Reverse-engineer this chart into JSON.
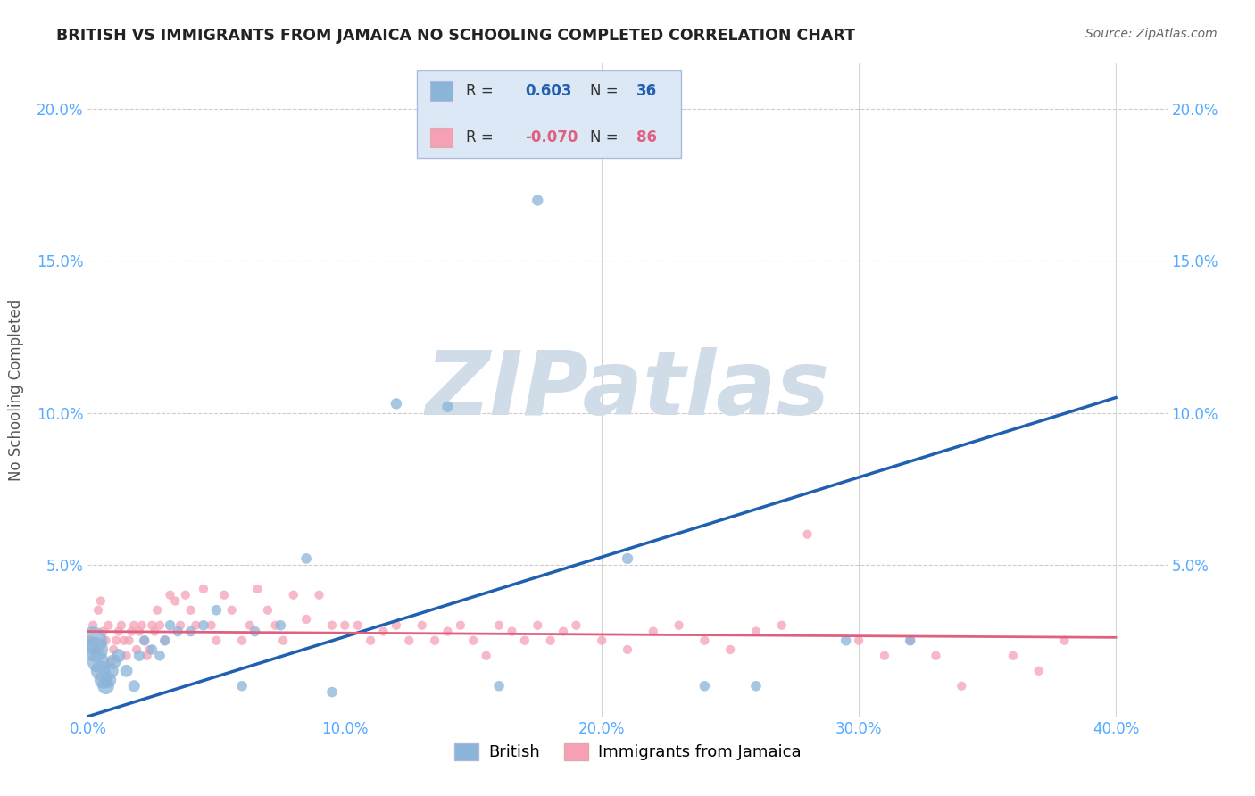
{
  "title": "BRITISH VS IMMIGRANTS FROM JAMAICA NO SCHOOLING COMPLETED CORRELATION CHART",
  "source": "Source: ZipAtlas.com",
  "ylabel": "No Schooling Completed",
  "xlim": [
    0.0,
    0.42
  ],
  "ylim": [
    0.0,
    0.215
  ],
  "xticks": [
    0.0,
    0.1,
    0.2,
    0.3,
    0.4
  ],
  "xticklabels": [
    "0.0%",
    "10.0%",
    "20.0%",
    "30.0%",
    "40.0%"
  ],
  "yticks": [
    0.0,
    0.05,
    0.1,
    0.15,
    0.2
  ],
  "yticklabels": [
    "",
    "5.0%",
    "10.0%",
    "15.0%",
    "20.0%"
  ],
  "british_R": 0.603,
  "british_N": 36,
  "jamaica_R": -0.07,
  "jamaica_N": 86,
  "british_color": "#8ab4d8",
  "jamaica_color": "#f5a0b5",
  "british_line_color": "#2060b0",
  "jamaica_line_color": "#e06080",
  "watermark": "ZIPatlas",
  "watermark_color": "#d0dce8",
  "british_x": [
    0.002,
    0.003,
    0.004,
    0.005,
    0.006,
    0.007,
    0.008,
    0.009,
    0.01,
    0.012,
    0.015,
    0.018,
    0.02,
    0.022,
    0.025,
    0.028,
    0.03,
    0.032,
    0.035,
    0.04,
    0.045,
    0.05,
    0.06,
    0.065,
    0.075,
    0.085,
    0.095,
    0.12,
    0.14,
    0.16,
    0.175,
    0.21,
    0.24,
    0.26,
    0.295,
    0.32
  ],
  "british_y": [
    0.025,
    0.022,
    0.018,
    0.015,
    0.012,
    0.01,
    0.012,
    0.015,
    0.018,
    0.02,
    0.015,
    0.01,
    0.02,
    0.025,
    0.022,
    0.02,
    0.025,
    0.03,
    0.028,
    0.028,
    0.03,
    0.035,
    0.01,
    0.028,
    0.03,
    0.052,
    0.008,
    0.103,
    0.102,
    0.01,
    0.17,
    0.052,
    0.01,
    0.01,
    0.025,
    0.025
  ],
  "british_sizes": [
    500,
    400,
    300,
    250,
    200,
    180,
    160,
    150,
    140,
    120,
    100,
    90,
    80,
    70,
    70,
    70,
    70,
    70,
    70,
    70,
    70,
    70,
    70,
    70,
    70,
    70,
    70,
    80,
    80,
    70,
    80,
    80,
    70,
    70,
    70,
    70
  ],
  "jamaica_x": [
    0.001,
    0.002,
    0.003,
    0.004,
    0.005,
    0.006,
    0.007,
    0.008,
    0.009,
    0.01,
    0.011,
    0.012,
    0.013,
    0.014,
    0.015,
    0.016,
    0.017,
    0.018,
    0.019,
    0.02,
    0.021,
    0.022,
    0.023,
    0.024,
    0.025,
    0.026,
    0.027,
    0.028,
    0.03,
    0.032,
    0.034,
    0.036,
    0.038,
    0.04,
    0.042,
    0.045,
    0.048,
    0.05,
    0.053,
    0.056,
    0.06,
    0.063,
    0.066,
    0.07,
    0.073,
    0.076,
    0.08,
    0.085,
    0.09,
    0.095,
    0.1,
    0.105,
    0.11,
    0.115,
    0.12,
    0.125,
    0.13,
    0.135,
    0.14,
    0.145,
    0.15,
    0.155,
    0.16,
    0.165,
    0.17,
    0.175,
    0.18,
    0.185,
    0.19,
    0.2,
    0.21,
    0.22,
    0.23,
    0.24,
    0.25,
    0.26,
    0.27,
    0.28,
    0.3,
    0.31,
    0.32,
    0.33,
    0.34,
    0.36,
    0.37,
    0.38
  ],
  "jamaica_y": [
    0.025,
    0.03,
    0.022,
    0.035,
    0.038,
    0.028,
    0.025,
    0.03,
    0.018,
    0.022,
    0.025,
    0.028,
    0.03,
    0.025,
    0.02,
    0.025,
    0.028,
    0.03,
    0.022,
    0.028,
    0.03,
    0.025,
    0.02,
    0.022,
    0.03,
    0.028,
    0.035,
    0.03,
    0.025,
    0.04,
    0.038,
    0.03,
    0.04,
    0.035,
    0.03,
    0.042,
    0.03,
    0.025,
    0.04,
    0.035,
    0.025,
    0.03,
    0.042,
    0.035,
    0.03,
    0.025,
    0.04,
    0.032,
    0.04,
    0.03,
    0.03,
    0.03,
    0.025,
    0.028,
    0.03,
    0.025,
    0.03,
    0.025,
    0.028,
    0.03,
    0.025,
    0.02,
    0.03,
    0.028,
    0.025,
    0.03,
    0.025,
    0.028,
    0.03,
    0.025,
    0.022,
    0.028,
    0.03,
    0.025,
    0.022,
    0.028,
    0.03,
    0.06,
    0.025,
    0.02,
    0.025,
    0.02,
    0.01,
    0.02,
    0.015,
    0.025
  ],
  "british_line_x0": 0.0,
  "british_line_y0": 0.0,
  "british_line_x1": 0.4,
  "british_line_y1": 0.105,
  "jamaica_line_x0": 0.0,
  "jamaica_line_y0": 0.028,
  "jamaica_line_x1": 0.4,
  "jamaica_line_y1": 0.026,
  "grid_color": "#cccccc",
  "tick_color": "#55aaff",
  "background_color": "#ffffff",
  "legend_box_color": "#dce8f5",
  "legend_box_edge": "#aabbdd"
}
